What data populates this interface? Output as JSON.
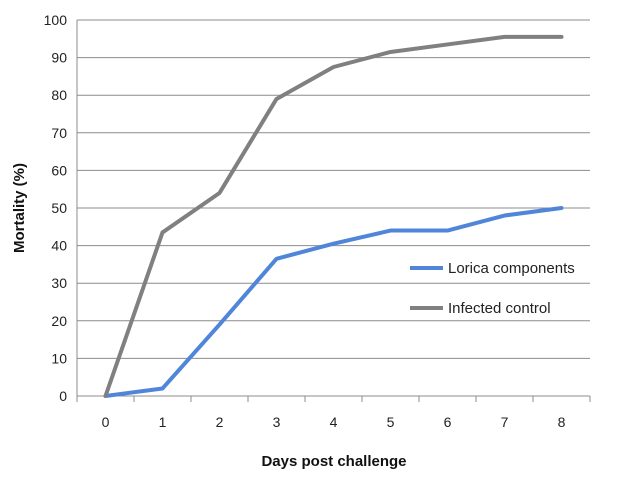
{
  "chart_data": {
    "type": "line",
    "title": "",
    "xlabel": "Days post challenge",
    "ylabel": "Mortality (%)",
    "x": [
      0,
      1,
      2,
      3,
      4,
      5,
      6,
      7,
      8
    ],
    "xlim": [
      -0.5,
      8.5
    ],
    "ylim": [
      0,
      100
    ],
    "yticks": [
      0,
      10,
      20,
      30,
      40,
      50,
      60,
      70,
      80,
      90,
      100
    ],
    "grid": "horizontal",
    "legend_position": "right",
    "series": [
      {
        "name": "Lorica components",
        "color": "#4f86d9",
        "values": [
          0,
          2,
          19,
          36.5,
          40.5,
          44,
          44,
          48,
          50
        ]
      },
      {
        "name": "Infected control",
        "color": "#808080",
        "values": [
          0,
          43.5,
          54,
          79,
          87.5,
          91.5,
          93.5,
          95.5,
          95.5
        ]
      }
    ]
  }
}
